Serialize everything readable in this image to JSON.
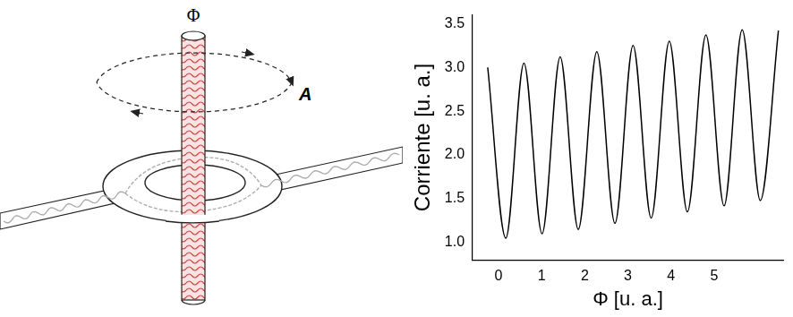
{
  "chart_data": {
    "type": "line",
    "x_label": "Φ [u. a.]",
    "y_label": "Corriente [u. a.]",
    "x": [
      -0.25,
      0.17,
      0.59,
      1.01,
      1.43,
      1.85,
      2.28,
      2.7,
      3.12,
      3.54,
      3.96,
      4.38,
      4.81,
      5.23,
      5.65,
      6.07,
      6.49
    ],
    "values": [
      3.0,
      1.05,
      3.05,
      1.1,
      3.12,
      1.15,
      3.18,
      1.22,
      3.25,
      1.28,
      3.3,
      1.35,
      3.37,
      1.42,
      3.43,
      1.48,
      3.42
    ],
    "color": "#000000",
    "xlim": [
      -0.6,
      6.6
    ],
    "xticks": [
      0,
      1,
      2,
      3,
      4,
      5
    ],
    "ylim": [
      0.8,
      3.6
    ],
    "yticks": [
      {
        "value": 1,
        "label": "1.0"
      },
      1.5,
      {
        "value": 2,
        "label": "2.0"
      },
      2.5,
      {
        "value": 3,
        "label": "3.0"
      },
      3.5
    ],
    "grid": false
  },
  "diagram": {
    "flux_label": "Φ",
    "potential_label": "A"
  }
}
